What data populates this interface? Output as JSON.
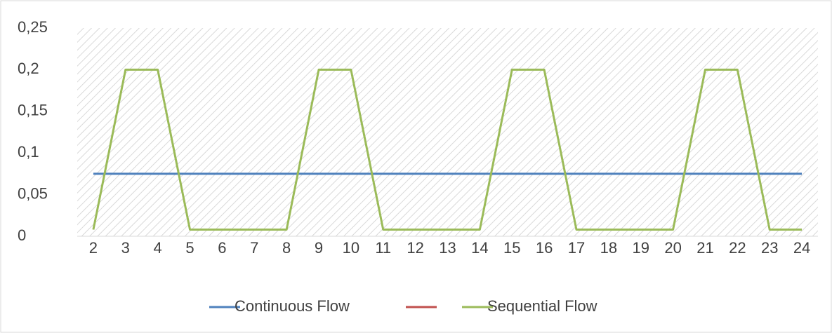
{
  "chart_data": {
    "type": "line",
    "categories": [
      "2",
      "3",
      "4",
      "5",
      "6",
      "7",
      "8",
      "9",
      "10",
      "11",
      "12",
      "13",
      "14",
      "15",
      "16",
      "17",
      "18",
      "19",
      "20",
      "21",
      "22",
      "23",
      "24"
    ],
    "series": [
      {
        "name": "Continuous Flow",
        "color": "#4f81bd",
        "values": [
          0.075,
          0.075,
          0.075,
          0.075,
          0.075,
          0.075,
          0.075,
          0.075,
          0.075,
          0.075,
          0.075,
          0.075,
          0.075,
          0.075,
          0.075,
          0.075,
          0.075,
          0.075,
          0.075,
          0.075,
          0.075,
          0.075,
          0.075
        ]
      },
      {
        "name": null,
        "color": "#c0504d",
        "values": [
          null,
          null,
          null,
          null,
          null,
          null,
          null,
          null,
          null,
          null,
          null,
          null,
          null,
          null,
          null,
          null,
          null,
          null,
          null,
          null,
          null,
          null,
          null
        ]
      },
      {
        "name": "Sequential Flow",
        "color": "#9bbb59",
        "values": [
          0.008,
          0.2,
          0.2,
          0.008,
          0.008,
          0.008,
          0.008,
          0.2,
          0.2,
          0.008,
          0.008,
          0.008,
          0.008,
          0.2,
          0.2,
          0.008,
          0.008,
          0.008,
          0.008,
          0.2,
          0.2,
          0.008,
          0.008
        ]
      }
    ],
    "ylim": [
      0,
      0.25
    ],
    "yticks": [
      {
        "value": 0,
        "label": "0"
      },
      {
        "value": 0.05,
        "label": "0,05"
      },
      {
        "value": 0.1,
        "label": "0,1"
      },
      {
        "value": 0.15,
        "label": "0,15"
      },
      {
        "value": 0.2,
        "label": "0,2"
      },
      {
        "value": 0.25,
        "label": "0,25"
      }
    ],
    "legend": "bottom"
  }
}
